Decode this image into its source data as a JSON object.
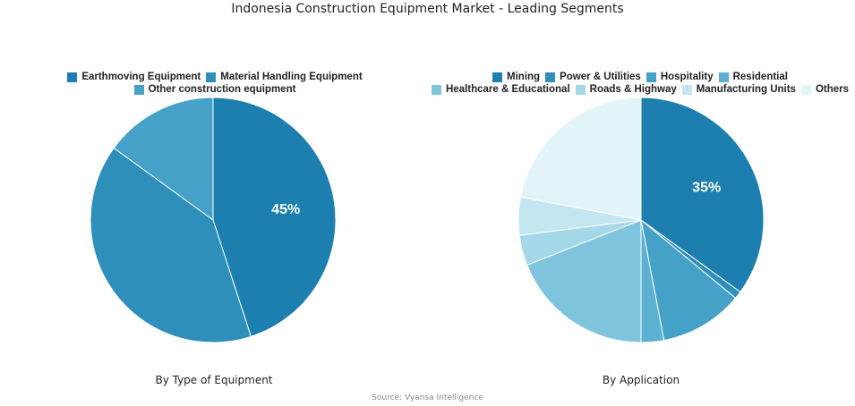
{
  "title": "Indonesia Construction Equipment Market - Leading Segments",
  "source": "Source: Vyansa Intelligence",
  "chart_data": [
    {
      "type": "pie",
      "subtitle": "By Type of Equipment",
      "legend_placement": "top",
      "slices": [
        {
          "label": "Earthmoving Equipment",
          "value": 45,
          "color": "#1d7fb0",
          "data_label": "45%"
        },
        {
          "label": "Material Handling Equipment",
          "value": 40,
          "color": "#2e8fbb",
          "data_label": ""
        },
        {
          "label": "Other construction equipment",
          "value": 15,
          "color": "#45a1c7",
          "data_label": ""
        }
      ]
    },
    {
      "type": "pie",
      "subtitle": "By Application",
      "legend_placement": "top",
      "slices": [
        {
          "label": "Mining",
          "value": 35,
          "color": "#1d7fb0",
          "data_label": "35%"
        },
        {
          "label": "Power & Utilities",
          "value": 1,
          "color": "#2e8fbb",
          "data_label": ""
        },
        {
          "label": "Hospitality",
          "value": 11,
          "color": "#45a1c7",
          "data_label": ""
        },
        {
          "label": "Residential",
          "value": 3,
          "color": "#5cb0d2",
          "data_label": ""
        },
        {
          "label": "Healthcare & Educational",
          "value": 19,
          "color": "#7ec4dd",
          "data_label": ""
        },
        {
          "label": "Roads & Highway",
          "value": 4,
          "color": "#a4d7e8",
          "data_label": ""
        },
        {
          "label": "Manufacturing Units",
          "value": 5,
          "color": "#c4e6f0",
          "data_label": ""
        },
        {
          "label": "Others",
          "value": 22,
          "color": "#e3f4f9",
          "data_label": ""
        }
      ]
    }
  ]
}
